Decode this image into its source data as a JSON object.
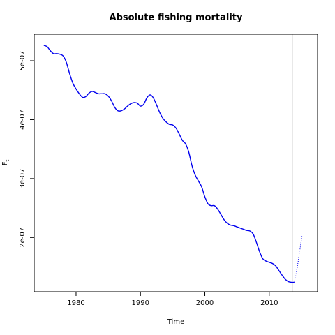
{
  "chart_data": {
    "type": "line",
    "title": "Absolute fishing mortality",
    "xlabel": "Time",
    "ylabel_main": "F",
    "ylabel_sub": "t",
    "xlim": [
      1973.5,
      2017.5
    ],
    "ylim": [
      1.08e-07,
      5.45e-07
    ],
    "x_ticks": [
      {
        "value": 1980,
        "label": "1980"
      },
      {
        "value": 1990,
        "label": "1990"
      },
      {
        "value": 2000,
        "label": "2000"
      },
      {
        "value": 2010,
        "label": "2010"
      }
    ],
    "y_ticks": [
      {
        "value": 2e-07,
        "label": "2e-07"
      },
      {
        "value": 3e-07,
        "label": "3e-07"
      },
      {
        "value": 4e-07,
        "label": "4e-07"
      },
      {
        "value": 5e-07,
        "label": "5e-07"
      }
    ],
    "vline_x": 2013.6,
    "grid": false,
    "legend": "none",
    "colors": {
      "series": "#0000ee",
      "vline": "#d3d3d3",
      "frame": "#000000"
    },
    "series": [
      {
        "style": "solid",
        "x": [
          1975.0,
          1975.5,
          1976.0,
          1976.5,
          1977.0,
          1977.5,
          1978.0,
          1978.5,
          1979.0,
          1979.5,
          1980.0,
          1980.5,
          1981.0,
          1981.5,
          1982.0,
          1982.5,
          1983.0,
          1983.5,
          1984.0,
          1984.5,
          1985.0,
          1985.5,
          1986.0,
          1986.5,
          1987.0,
          1987.5,
          1988.0,
          1988.5,
          1989.0,
          1989.5,
          1990.0,
          1990.5,
          1991.0,
          1991.5,
          1992.0,
          1992.5,
          1993.0,
          1993.5,
          1994.0,
          1994.5,
          1995.0,
          1995.5,
          1996.0,
          1996.5,
          1997.0,
          1997.5,
          1998.0,
          1998.5,
          1999.0,
          1999.5,
          2000.0,
          2000.5,
          2001.0,
          2001.5,
          2002.0,
          2002.5,
          2003.0,
          2003.5,
          2004.0,
          2004.5,
          2005.0,
          2005.5,
          2006.0,
          2006.5,
          2007.0,
          2007.5,
          2008.0,
          2008.5,
          2009.0,
          2009.5,
          2010.0,
          2010.5,
          2011.0,
          2011.5,
          2012.0,
          2012.5,
          2013.0,
          2013.5,
          2013.9
        ],
        "y": [
          5.26e-07,
          5.24e-07,
          5.17e-07,
          5.12e-07,
          5.12e-07,
          5.11e-07,
          5.08e-07,
          4.97e-07,
          4.78e-07,
          4.62e-07,
          4.52e-07,
          4.44e-07,
          4.38e-07,
          4.39e-07,
          4.45e-07,
          4.48e-07,
          4.46e-07,
          4.44e-07,
          4.44e-07,
          4.44e-07,
          4.4e-07,
          4.32e-07,
          4.21e-07,
          4.15e-07,
          4.15e-07,
          4.18e-07,
          4.23e-07,
          4.27e-07,
          4.29e-07,
          4.28e-07,
          4.23e-07,
          4.26e-07,
          4.37e-07,
          4.42e-07,
          4.37e-07,
          4.25e-07,
          4.12e-07,
          4.02e-07,
          3.96e-07,
          3.92e-07,
          3.91e-07,
          3.86e-07,
          3.76e-07,
          3.65e-07,
          3.59e-07,
          3.45e-07,
          3.22e-07,
          3.06e-07,
          2.96e-07,
          2.86e-07,
          2.69e-07,
          2.57e-07,
          2.54e-07,
          2.54e-07,
          2.48e-07,
          2.39e-07,
          2.3e-07,
          2.24e-07,
          2.21e-07,
          2.2e-07,
          2.18e-07,
          2.16e-07,
          2.14e-07,
          2.12e-07,
          2.11e-07,
          2.06e-07,
          1.92e-07,
          1.76e-07,
          1.64e-07,
          1.6e-07,
          1.58e-07,
          1.56e-07,
          1.52e-07,
          1.44e-07,
          1.36e-07,
          1.29e-07,
          1.25e-07,
          1.24e-07,
          1.24e-07
        ]
      },
      {
        "style": "dotted",
        "x": [
          2013.9,
          2014.2,
          2014.5,
          2014.8,
          2015.1
        ],
        "y": [
          1.24e-07,
          1.4e-07,
          1.6e-07,
          1.82e-07,
          2.04e-07
        ]
      }
    ]
  }
}
